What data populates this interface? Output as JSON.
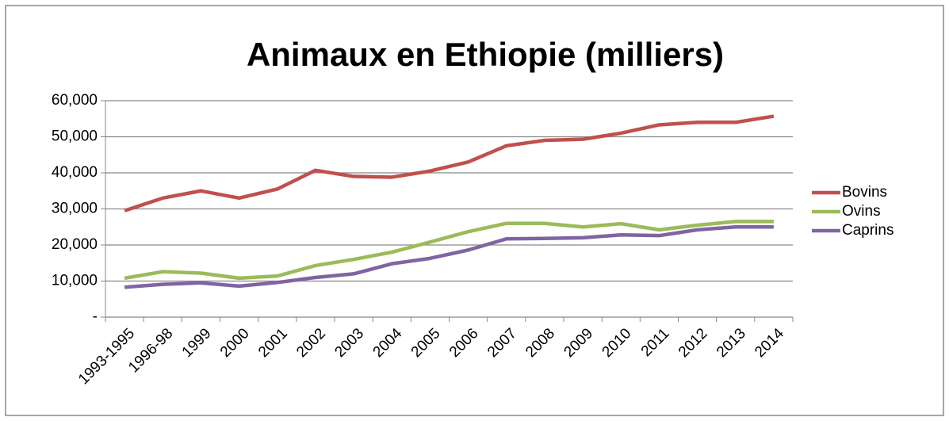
{
  "chart_data": {
    "type": "line",
    "title": "Animaux en Ethiopie (milliers)",
    "categories": [
      "1993-1995",
      "1996-98",
      "1999",
      "2000",
      "2001",
      "2002",
      "2003",
      "2004",
      "2005",
      "2006",
      "2007",
      "2008",
      "2009",
      "2010",
      "2011",
      "2012",
      "2013",
      "2014"
    ],
    "series": [
      {
        "name": "Bovins",
        "color": "#c0504d",
        "values": [
          29500,
          33000,
          35000,
          33000,
          35500,
          40700,
          39000,
          38800,
          40500,
          43000,
          47500,
          49000,
          49300,
          51000,
          53300,
          54000,
          54000,
          55700
        ]
      },
      {
        "name": "Ovins",
        "color": "#9bbb59",
        "values": [
          10800,
          12600,
          12200,
          10800,
          11400,
          14300,
          16000,
          18000,
          20800,
          23700,
          26000,
          26000,
          25000,
          25900,
          24200,
          25500,
          26500,
          26500
        ]
      },
      {
        "name": "Caprins",
        "color": "#8064a2",
        "values": [
          8300,
          9100,
          9500,
          8600,
          9600,
          11000,
          12000,
          14800,
          16300,
          18600,
          21700,
          21800,
          22000,
          22800,
          22600,
          24200,
          25000,
          25000
        ]
      }
    ],
    "ylim": [
      0,
      60000
    ],
    "yticks": [
      {
        "value": 0,
        "label": "-"
      },
      {
        "value": 10000,
        "label": "10,000"
      },
      {
        "value": 20000,
        "label": "20,000"
      },
      {
        "value": 30000,
        "label": "30,000"
      },
      {
        "value": 40000,
        "label": "40,000"
      },
      {
        "value": 50000,
        "label": "50,000"
      },
      {
        "value": 60000,
        "label": "60,000"
      }
    ],
    "grid": true,
    "legend": "right"
  }
}
